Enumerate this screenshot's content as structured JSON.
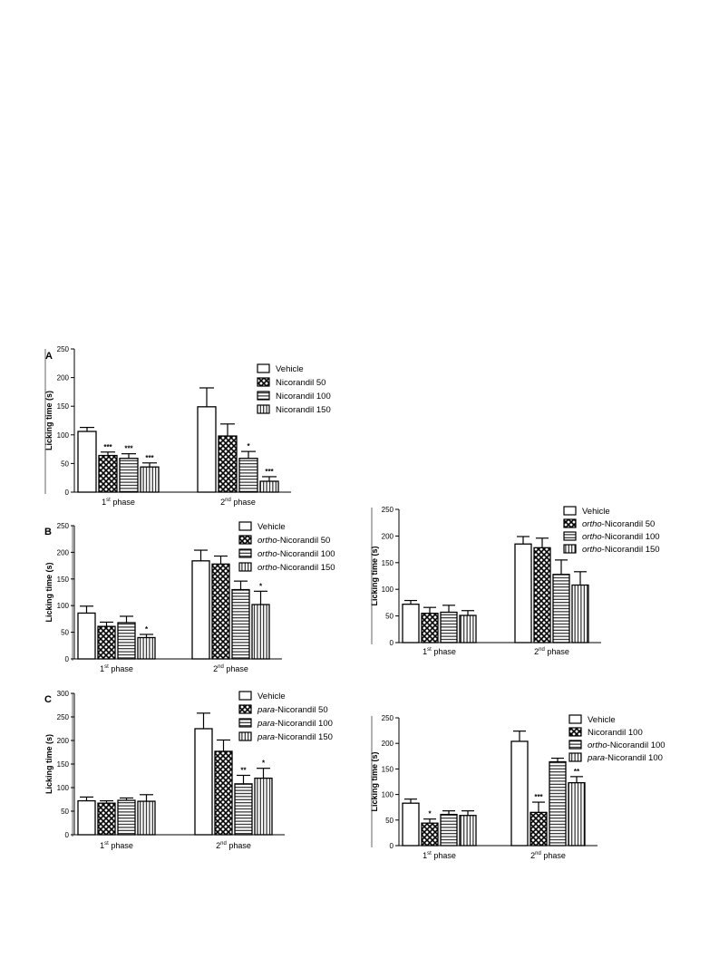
{
  "chart_data": [
    {
      "type": "bar",
      "panel_label": "A",
      "ylabel": "Licking time (s)",
      "ylim": [
        0,
        250
      ],
      "yticks": [
        0,
        50,
        100,
        150,
        200,
        250
      ],
      "categories": [
        {
          "base": "1",
          "sup": "st",
          "rest": " phase"
        },
        {
          "base": "2",
          "sup": "nd",
          "rest": " phase"
        }
      ],
      "series": [
        {
          "name": "Vehicle",
          "pattern": "open",
          "values": [
            106,
            149
          ],
          "errors": [
            7,
            33
          ],
          "stars": [
            "",
            ""
          ]
        },
        {
          "name": "Nicorandil 50",
          "pattern": "cross",
          "values": [
            64,
            98
          ],
          "errors": [
            6,
            21
          ],
          "stars": [
            "***",
            ""
          ]
        },
        {
          "name": "Nicorandil 100",
          "pattern": "hlines",
          "values": [
            59,
            59
          ],
          "errors": [
            8,
            12
          ],
          "stars": [
            "***",
            "*"
          ]
        },
        {
          "name": "Nicorandil 150",
          "pattern": "vlines",
          "values": [
            44,
            19
          ],
          "errors": [
            7,
            8
          ],
          "stars": [
            "***",
            "***"
          ]
        }
      ]
    },
    {
      "type": "bar",
      "panel_label": "B",
      "ylabel": "Licking time (s)",
      "ylim": [
        0,
        250
      ],
      "yticks": [
        0,
        50,
        100,
        150,
        200,
        250
      ],
      "categories": [
        {
          "base": "1",
          "sup": "st",
          "rest": " phase"
        },
        {
          "base": "2",
          "sup": "nd",
          "rest": " phase"
        }
      ],
      "series": [
        {
          "name": "Vehicle",
          "pattern": "open",
          "values": [
            86,
            184
          ],
          "errors": [
            13,
            20
          ],
          "stars": [
            "",
            ""
          ]
        },
        {
          "name": "ortho-Nicorandil 50",
          "italic": "ortho",
          "rest": "-Nicorandil 50",
          "pattern": "cross",
          "values": [
            61,
            178
          ],
          "errors": [
            8,
            15
          ],
          "stars": [
            "",
            ""
          ]
        },
        {
          "name": "ortho-Nicorandil 100",
          "italic": "ortho",
          "rest": "-Nicorandil 100",
          "pattern": "hlines",
          "values": [
            68,
            130
          ],
          "errors": [
            12,
            16
          ],
          "stars": [
            "",
            ""
          ]
        },
        {
          "name": "ortho-Nicorandil 150",
          "italic": "ortho",
          "rest": "-Nicorandil 150",
          "pattern": "vlines",
          "values": [
            40,
            102
          ],
          "errors": [
            6,
            25
          ],
          "stars": [
            "*",
            "*"
          ]
        }
      ]
    },
    {
      "type": "bar",
      "panel_label": "",
      "ylabel": "Licking time (s)",
      "ylim": [
        0,
        250
      ],
      "yticks": [
        0,
        50,
        100,
        150,
        200,
        250
      ],
      "categories": [
        {
          "base": "1",
          "sup": "st",
          "rest": " phase"
        },
        {
          "base": "2",
          "sup": "nd",
          "rest": " phase"
        }
      ],
      "series": [
        {
          "name": "Vehicle",
          "pattern": "open",
          "values": [
            72,
            185
          ],
          "errors": [
            7,
            14
          ],
          "stars": [
            "",
            ""
          ]
        },
        {
          "name": "ortho-Nicorandil 50",
          "italic": "ortho",
          "rest": "-Nicorandil 50",
          "pattern": "cross",
          "values": [
            55,
            178
          ],
          "errors": [
            11,
            18
          ],
          "stars": [
            "",
            ""
          ]
        },
        {
          "name": "ortho-Nicorandil 100",
          "italic": "ortho",
          "rest": "-Nicorandil 100",
          "pattern": "hlines",
          "values": [
            57,
            128
          ],
          "errors": [
            13,
            27
          ],
          "stars": [
            "",
            ""
          ]
        },
        {
          "name": "ortho-Nicorandil 150",
          "italic": "ortho",
          "rest": "-Nicorandil 150",
          "pattern": "vlines",
          "values": [
            51,
            108
          ],
          "errors": [
            9,
            25
          ],
          "stars": [
            "",
            ""
          ]
        }
      ]
    },
    {
      "type": "bar",
      "panel_label": "C",
      "ylabel": "Licking time (s)",
      "ylim": [
        0,
        300
      ],
      "yticks": [
        0,
        50,
        100,
        150,
        200,
        250,
        300
      ],
      "categories": [
        {
          "base": "1",
          "sup": "st",
          "rest": " phase"
        },
        {
          "base": "2",
          "sup": "nd",
          "rest": " phase"
        }
      ],
      "series": [
        {
          "name": "Vehicle",
          "pattern": "open",
          "values": [
            72,
            225
          ],
          "errors": [
            8,
            33
          ],
          "stars": [
            "",
            ""
          ]
        },
        {
          "name": "para-Nicorandil 50",
          "italic": "para",
          "rest": "-Nicorandil 50",
          "pattern": "cross",
          "values": [
            67,
            177
          ],
          "errors": [
            5,
            24
          ],
          "stars": [
            "",
            ""
          ]
        },
        {
          "name": "para-Nicorandil 100",
          "italic": "para",
          "rest": "-Nicorandil 100",
          "pattern": "hlines",
          "values": [
            73,
            108
          ],
          "errors": [
            5,
            18
          ],
          "stars": [
            "",
            "**"
          ]
        },
        {
          "name": "para-Nicorandil 150",
          "italic": "para",
          "rest": "-Nicorandil 150",
          "pattern": "vlines",
          "values": [
            71,
            120
          ],
          "errors": [
            14,
            21
          ],
          "stars": [
            "",
            "*"
          ]
        }
      ]
    },
    {
      "type": "bar",
      "panel_label": "",
      "ylabel": "Licking time (s)",
      "ylim": [
        0,
        250
      ],
      "yticks": [
        0,
        50,
        100,
        150,
        200,
        250
      ],
      "categories": [
        {
          "base": "1",
          "sup": "st",
          "rest": " phase"
        },
        {
          "base": "2",
          "sup": "nd",
          "rest": " phase"
        }
      ],
      "series": [
        {
          "name": "Vehicle",
          "pattern": "open",
          "values": [
            83,
            204
          ],
          "errors": [
            8,
            20
          ],
          "stars": [
            "",
            ""
          ]
        },
        {
          "name": "Nicorandil 100",
          "pattern": "cross",
          "values": [
            44,
            65
          ],
          "errors": [
            8,
            20
          ],
          "stars": [
            "*",
            "***"
          ]
        },
        {
          "name": "ortho-Nicorandil 100",
          "italic": "ortho",
          "rest": "-Nicorandil 100",
          "pattern": "hlines",
          "values": [
            61,
            164
          ],
          "errors": [
            7,
            7
          ],
          "stars": [
            "",
            ""
          ]
        },
        {
          "name": "para-Nicorandil 100",
          "italic": "para",
          "rest": "-Nicorandil 100",
          "pattern": "vlines",
          "values": [
            59,
            123
          ],
          "errors": [
            9,
            12
          ],
          "stars": [
            "",
            "**"
          ]
        }
      ]
    }
  ]
}
